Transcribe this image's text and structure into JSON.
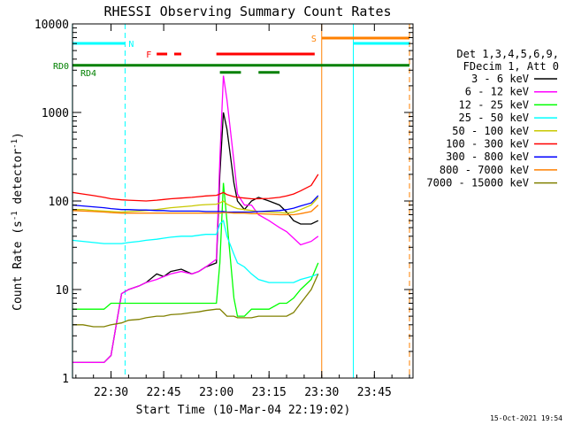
{
  "chart_data": {
    "type": "line",
    "title": "RHESSI Observing Summary Count Rates",
    "xlabel": "Start Time (10-Mar-04 22:19:02)",
    "ylabel_main": "Count Rate (s",
    "ylabel_sup1": "-1",
    "ylabel_mid": " detector",
    "ylabel_sup2": "-1",
    "ylabel_end": ")",
    "y_scale": "log",
    "ylim": [
      1,
      10000
    ],
    "xlim": [
      "22:19:02",
      "23:56:00"
    ],
    "x_ticks": [
      {
        "t": "22:30",
        "label": "22:30"
      },
      {
        "t": "22:45",
        "label": "22:45"
      },
      {
        "t": "23:00",
        "label": "23:00"
      },
      {
        "t": "23:15",
        "label": "23:15"
      },
      {
        "t": "23:30",
        "label": "23:30"
      },
      {
        "t": "23:45",
        "label": "23:45"
      }
    ],
    "y_ticks": [
      {
        "v": 1,
        "label": "1"
      },
      {
        "v": 10,
        "label": "10"
      },
      {
        "v": 100,
        "label": "100"
      },
      {
        "v": 1000,
        "label": "1000"
      },
      {
        "v": 10000,
        "label": "10000"
      }
    ],
    "legend_header": [
      "Det 1,3,4,5,6,9,",
      "FDecim 1, Att 0"
    ],
    "legend_position": "right",
    "timestamp": "15-Oct-2021 19:54",
    "series": [
      {
        "name": "3 - 6 keV",
        "color": "#000000",
        "times": [
          "22:19",
          "22:22",
          "22:25",
          "22:28",
          "22:30",
          "22:33",
          "22:35",
          "22:38",
          "22:40",
          "22:43",
          "22:45",
          "22:47",
          "22:50",
          "22:53",
          "22:55",
          "22:57",
          "23:00",
          "23:01",
          "23:02",
          "23:03",
          "23:05",
          "23:06",
          "23:08",
          "23:10",
          "23:12",
          "23:15",
          "23:18",
          "23:20",
          "23:22",
          "23:24",
          "23:27",
          "23:29"
        ],
        "values": [
          1.5,
          1.5,
          1.5,
          1.5,
          1.8,
          9,
          10,
          11,
          12,
          15,
          14,
          16,
          17,
          15,
          16,
          18,
          20,
          200,
          1000,
          650,
          160,
          100,
          80,
          100,
          110,
          100,
          90,
          75,
          60,
          55,
          55,
          60
        ]
      },
      {
        "name": "6 - 12 keV",
        "color": "#ff00ff",
        "times": [
          "22:19",
          "22:22",
          "22:25",
          "22:28",
          "22:30",
          "22:33",
          "22:35",
          "22:38",
          "22:40",
          "22:43",
          "22:45",
          "22:47",
          "22:50",
          "22:53",
          "22:55",
          "22:57",
          "23:00",
          "23:01",
          "23:02",
          "23:03",
          "23:05",
          "23:06",
          "23:08",
          "23:10",
          "23:12",
          "23:15",
          "23:18",
          "23:20",
          "23:22",
          "23:24",
          "23:27",
          "23:29"
        ],
        "values": [
          1.5,
          1.5,
          1.5,
          1.5,
          1.8,
          9,
          10,
          11,
          12,
          13,
          14,
          15,
          16,
          15,
          16,
          18,
          22,
          300,
          2600,
          1400,
          280,
          120,
          90,
          90,
          70,
          60,
          50,
          45,
          38,
          32,
          35,
          40
        ]
      },
      {
        "name": "12 - 25 keV",
        "color": "#00ff00",
        "times": [
          "22:19",
          "22:22",
          "22:25",
          "22:28",
          "22:30",
          "22:33",
          "22:35",
          "22:38",
          "22:40",
          "22:43",
          "22:45",
          "22:47",
          "22:50",
          "22:53",
          "22:55",
          "22:57",
          "23:00",
          "23:01",
          "23:02",
          "23:03",
          "23:05",
          "23:06",
          "23:08",
          "23:10",
          "23:12",
          "23:15",
          "23:18",
          "23:20",
          "23:22",
          "23:24",
          "23:27",
          "23:29"
        ],
        "values": [
          6,
          6,
          6,
          6,
          7,
          7,
          7,
          7,
          7,
          7,
          7,
          7,
          7,
          7,
          7,
          7,
          7,
          20,
          160,
          60,
          8,
          5,
          5,
          6,
          6,
          6,
          7,
          7,
          8,
          10,
          13,
          20
        ]
      },
      {
        "name": "25 - 50 keV",
        "color": "#00ffff",
        "times": [
          "22:19",
          "22:22",
          "22:25",
          "22:28",
          "22:30",
          "22:33",
          "22:35",
          "22:38",
          "22:40",
          "22:43",
          "22:45",
          "22:47",
          "22:50",
          "22:53",
          "22:55",
          "22:57",
          "23:00",
          "23:01",
          "23:02",
          "23:03",
          "23:05",
          "23:06",
          "23:08",
          "23:10",
          "23:12",
          "23:15",
          "23:18",
          "23:20",
          "23:22",
          "23:24",
          "23:27",
          "23:29"
        ],
        "values": [
          36,
          35,
          34,
          33,
          33,
          33,
          34,
          35,
          36,
          37,
          38,
          39,
          40,
          40,
          41,
          42,
          42,
          55,
          60,
          40,
          25,
          20,
          18,
          15,
          13,
          12,
          12,
          12,
          12,
          13,
          14,
          15
        ]
      },
      {
        "name": "50 - 100 keV",
        "color": "#c8c800",
        "times": [
          "22:19",
          "22:22",
          "22:25",
          "22:28",
          "22:30",
          "22:33",
          "22:35",
          "22:38",
          "22:40",
          "22:43",
          "22:45",
          "22:47",
          "22:50",
          "22:53",
          "22:55",
          "22:57",
          "23:00",
          "23:01",
          "23:02",
          "23:03",
          "23:05",
          "23:06",
          "23:08",
          "23:10",
          "23:12",
          "23:15",
          "23:18",
          "23:20",
          "23:22",
          "23:24",
          "23:27",
          "23:29"
        ],
        "values": [
          80,
          80,
          78,
          77,
          76,
          75,
          76,
          77,
          78,
          80,
          82,
          84,
          86,
          88,
          90,
          91,
          92,
          95,
          100,
          92,
          85,
          82,
          80,
          78,
          76,
          75,
          74,
          73,
          75,
          80,
          90,
          110
        ]
      },
      {
        "name": "100 - 300 keV",
        "color": "#ff0000",
        "times": [
          "22:19",
          "22:22",
          "22:25",
          "22:28",
          "22:30",
          "22:33",
          "22:35",
          "22:38",
          "22:40",
          "22:43",
          "22:45",
          "22:47",
          "22:50",
          "22:53",
          "22:55",
          "22:57",
          "23:00",
          "23:01",
          "23:02",
          "23:03",
          "23:05",
          "23:06",
          "23:08",
          "23:10",
          "23:12",
          "23:15",
          "23:18",
          "23:20",
          "23:22",
          "23:24",
          "23:27",
          "23:29"
        ],
        "values": [
          125,
          120,
          115,
          110,
          106,
          103,
          102,
          101,
          100,
          102,
          104,
          106,
          108,
          110,
          112,
          114,
          116,
          120,
          125,
          118,
          112,
          110,
          108,
          106,
          106,
          107,
          110,
          114,
          120,
          130,
          150,
          200
        ]
      },
      {
        "name": "300 - 800 keV",
        "color": "#0000ff",
        "times": [
          "22:19",
          "22:22",
          "22:25",
          "22:28",
          "22:30",
          "22:33",
          "22:35",
          "22:38",
          "22:40",
          "22:43",
          "22:45",
          "22:47",
          "22:50",
          "22:53",
          "22:55",
          "22:57",
          "23:00",
          "23:01",
          "23:02",
          "23:03",
          "23:05",
          "23:06",
          "23:08",
          "23:10",
          "23:12",
          "23:15",
          "23:18",
          "23:20",
          "23:22",
          "23:24",
          "23:27",
          "23:29"
        ],
        "values": [
          90,
          88,
          86,
          84,
          82,
          80,
          80,
          79,
          79,
          78,
          78,
          77,
          77,
          77,
          77,
          76,
          76,
          76,
          76,
          75,
          75,
          75,
          75,
          75,
          76,
          77,
          78,
          80,
          83,
          88,
          95,
          115
        ]
      },
      {
        "name": "800 - 7000 keV",
        "color": "#ff8000",
        "times": [
          "22:19",
          "22:22",
          "22:25",
          "22:28",
          "22:30",
          "22:33",
          "22:35",
          "22:38",
          "22:40",
          "22:43",
          "22:45",
          "22:47",
          "22:50",
          "22:53",
          "22:55",
          "22:57",
          "23:00",
          "23:01",
          "23:02",
          "23:03",
          "23:05",
          "23:06",
          "23:08",
          "23:10",
          "23:12",
          "23:15",
          "23:18",
          "23:20",
          "23:22",
          "23:24",
          "23:27",
          "23:29"
        ],
        "values": [
          78,
          77,
          76,
          75,
          74,
          73,
          73,
          73,
          73,
          73,
          73,
          73,
          73,
          73,
          73,
          73,
          73,
          73,
          74,
          74,
          73,
          73,
          73,
          72,
          72,
          71,
          70,
          70,
          70,
          72,
          76,
          90
        ]
      },
      {
        "name": "7000 - 15000 keV",
        "color": "#808000",
        "times": [
          "22:19",
          "22:22",
          "22:25",
          "22:28",
          "22:30",
          "22:33",
          "22:35",
          "22:38",
          "22:40",
          "22:43",
          "22:45",
          "22:47",
          "22:50",
          "22:53",
          "22:55",
          "22:57",
          "23:00",
          "23:01",
          "23:02",
          "23:03",
          "23:05",
          "23:06",
          "23:08",
          "23:10",
          "23:12",
          "23:15",
          "23:18",
          "23:20",
          "23:22",
          "23:24",
          "23:27",
          "23:29"
        ],
        "values": [
          4,
          4,
          3.8,
          3.8,
          4,
          4.2,
          4.5,
          4.6,
          4.8,
          5,
          5,
          5.2,
          5.3,
          5.5,
          5.6,
          5.8,
          6,
          6,
          5.5,
          5,
          5,
          4.8,
          4.8,
          4.8,
          5,
          5,
          5,
          5,
          5.5,
          7,
          10,
          15
        ]
      }
    ],
    "flags": [
      {
        "label": "N",
        "color": "#00ffff",
        "y_frac": 0.055,
        "segments": [
          [
            "22:19",
            "22:34"
          ],
          [
            "23:39",
            "23:55"
          ]
        ],
        "label_at": "22:35"
      },
      {
        "label": "F",
        "color": "#ff0000",
        "y_frac": 0.085,
        "segments": [
          [
            "22:43",
            "22:46"
          ],
          [
            "22:48",
            "22:50"
          ],
          [
            "23:00",
            "23:28"
          ]
        ],
        "label_at": "22:40"
      },
      {
        "label": "S",
        "color": "#ff8000",
        "y_frac": 0.04,
        "segments": [
          [
            "23:30",
            "23:55"
          ]
        ],
        "label_at": "23:27"
      },
      {
        "label": "RD0",
        "color": "#008000",
        "y_frac": 0.117,
        "segments": [
          [
            "22:19",
            "23:55"
          ]
        ],
        "label_at": "left"
      },
      {
        "label": "RD4",
        "color": "#008000",
        "y_frac": 0.137,
        "segments": [
          [
            "23:01",
            "23:07"
          ],
          [
            "23:12",
            "23:18"
          ]
        ],
        "label_at": "left2"
      }
    ],
    "vertical_lines": [
      {
        "t": "22:19",
        "color": "#00ffff",
        "style": "solid"
      },
      {
        "t": "22:34",
        "color": "#00ffff",
        "style": "dashed"
      },
      {
        "t": "23:30",
        "color": "#ff8000",
        "style": "solid"
      },
      {
        "t": "23:39",
        "color": "#00ffff",
        "style": "solid"
      },
      {
        "t": "23:55",
        "color": "#ff8000",
        "style": "dashed"
      }
    ],
    "grid": false
  }
}
